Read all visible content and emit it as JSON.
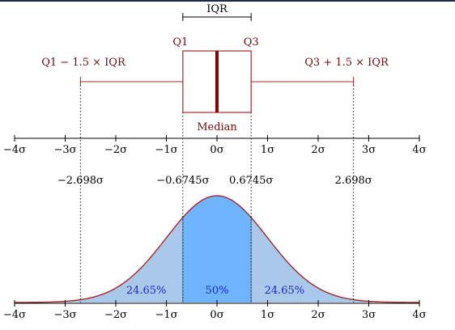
{
  "box_plot": {
    "iqr_label": "IQR",
    "q1_label": "Q1",
    "q3_label": "Q3",
    "median_label": "Median",
    "lower_whisker_label": "Q1 − 1.5 × IQR",
    "upper_whisker_label": "Q3 + 1.5 × IQR"
  },
  "axis": {
    "ticks": [
      {
        "value": -4,
        "label": "−4σ"
      },
      {
        "value": -3,
        "label": "−3σ"
      },
      {
        "value": -2,
        "label": "−2σ"
      },
      {
        "value": -1,
        "label": "−1σ"
      },
      {
        "value": 0,
        "label": "0σ"
      },
      {
        "value": 1,
        "label": "1σ"
      },
      {
        "value": 2,
        "label": "2σ"
      },
      {
        "value": 3,
        "label": "3σ"
      },
      {
        "value": 4,
        "label": "4σ"
      }
    ]
  },
  "markers": [
    {
      "value": -2.698,
      "label": "−2.698σ"
    },
    {
      "value": -0.6745,
      "label": "−0.6745σ"
    },
    {
      "value": 0.6745,
      "label": "0.6745σ"
    },
    {
      "value": 2.698,
      "label": "2.698σ"
    }
  ],
  "regions": [
    {
      "from": -2.698,
      "to": -0.6745,
      "label": "24.65%"
    },
    {
      "from": -0.6745,
      "to": 0.6745,
      "label": "50%"
    },
    {
      "from": 0.6745,
      "to": 2.698,
      "label": "24.65%"
    }
  ],
  "colors": {
    "box": "#a52a2a",
    "median": "#8b0000",
    "curve": "#a52a2a",
    "fill_outer": "#aac8ea",
    "fill_inner": "#6fb4ff",
    "region_text": "#1f24c8",
    "text_dark": "#000000",
    "text_maroon": "#6b0f0f"
  }
}
